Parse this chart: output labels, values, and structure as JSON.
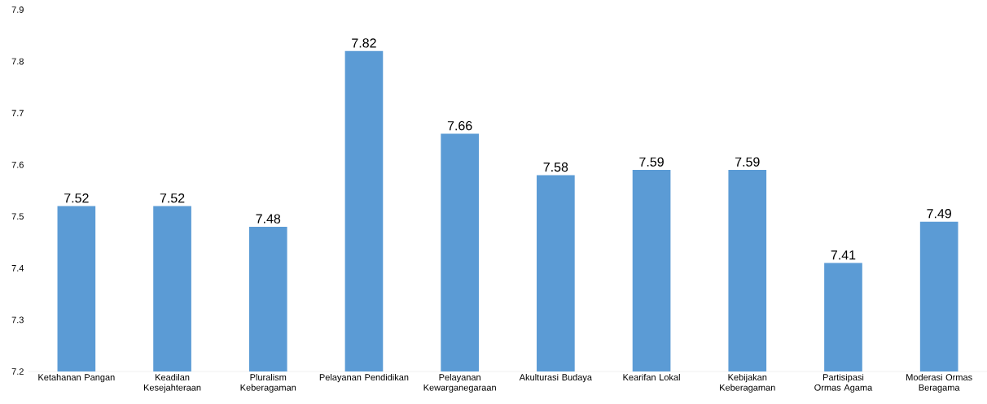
{
  "chart_data": {
    "type": "bar",
    "categories": [
      "Ketahanan Pangan",
      "Keadilan Kesejahteraan",
      "Pluralism Keberagaman",
      "Pelayanan Pendidikan",
      "Pelayanan Kewarganegaraan",
      "Akulturasi Budaya",
      "Kearifan Lokal",
      "Kebijakan Keberagaman",
      "Partisipasi Ormas Agama",
      "Moderasi Ormas Beragama"
    ],
    "values": [
      7.52,
      7.52,
      7.48,
      7.82,
      7.66,
      7.58,
      7.59,
      7.59,
      7.41,
      7.49
    ],
    "color": "#5b9bd5",
    "ylim": [
      7.2,
      7.9
    ],
    "yticks": [
      7.2,
      7.3,
      7.4,
      7.5,
      7.6,
      7.7,
      7.8,
      7.9
    ],
    "data_labels": true
  }
}
